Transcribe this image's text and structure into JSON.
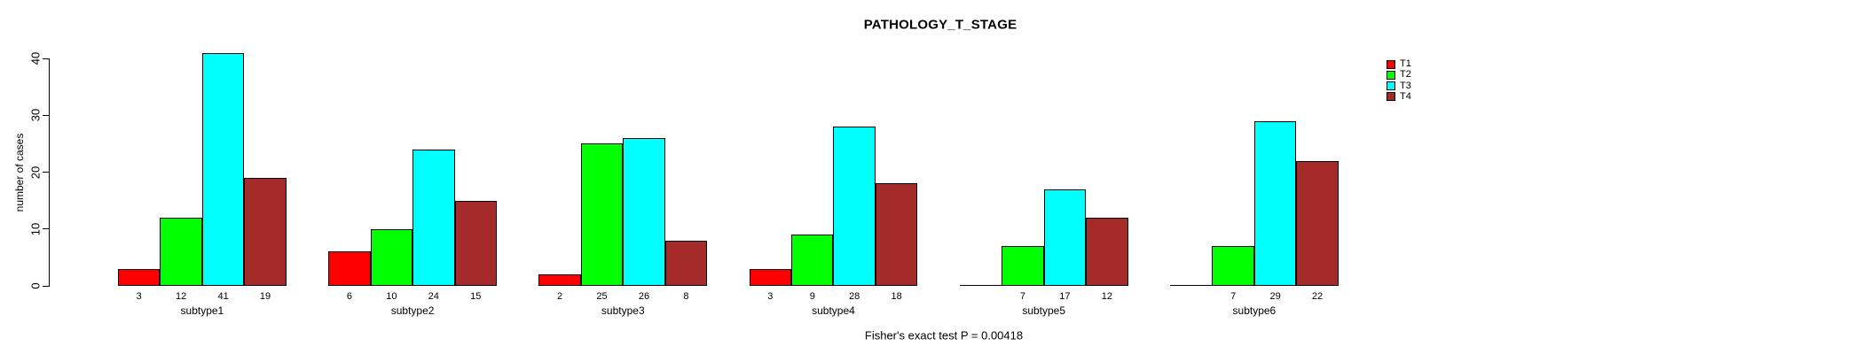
{
  "figure": {
    "title": "PATHOLOGY_T_STAGE",
    "annotation": "Fisher's exact test P = 0.00418"
  },
  "chart_data": {
    "type": "bar",
    "title": "PATHOLOGY_T_STAGE",
    "ylabel": "number of cases",
    "xlabel": "",
    "ylim": [
      0,
      40
    ],
    "yticks": [
      0,
      10,
      20,
      30,
      40
    ],
    "grid": false,
    "legend_position": "top-right",
    "bar_value_labels": true,
    "zero_values_unlabeled": true,
    "annotation": "Fisher's exact test P = 0.00418",
    "categories": [
      "subtype1",
      "subtype2",
      "subtype3",
      "subtype4",
      "subtype5",
      "subtype6"
    ],
    "series": [
      {
        "name": "T1",
        "color": "#FF0000",
        "values": [
          3,
          6,
          2,
          3,
          0,
          0
        ]
      },
      {
        "name": "T2",
        "color": "#00FF00",
        "values": [
          12,
          10,
          25,
          9,
          7,
          7
        ]
      },
      {
        "name": "T3",
        "color": "#00FFFF",
        "values": [
          41,
          24,
          26,
          28,
          17,
          29
        ]
      },
      {
        "name": "T4",
        "color": "#A52A2A",
        "values": [
          19,
          15,
          8,
          18,
          12,
          22
        ]
      }
    ]
  },
  "colors": {
    "background": "#FFFFFF",
    "axis": "#000000",
    "text": "#000000",
    "t1": "#FF0000",
    "t2": "#00FF00",
    "t3": "#00FFFF",
    "t4": "#A52A2A"
  }
}
